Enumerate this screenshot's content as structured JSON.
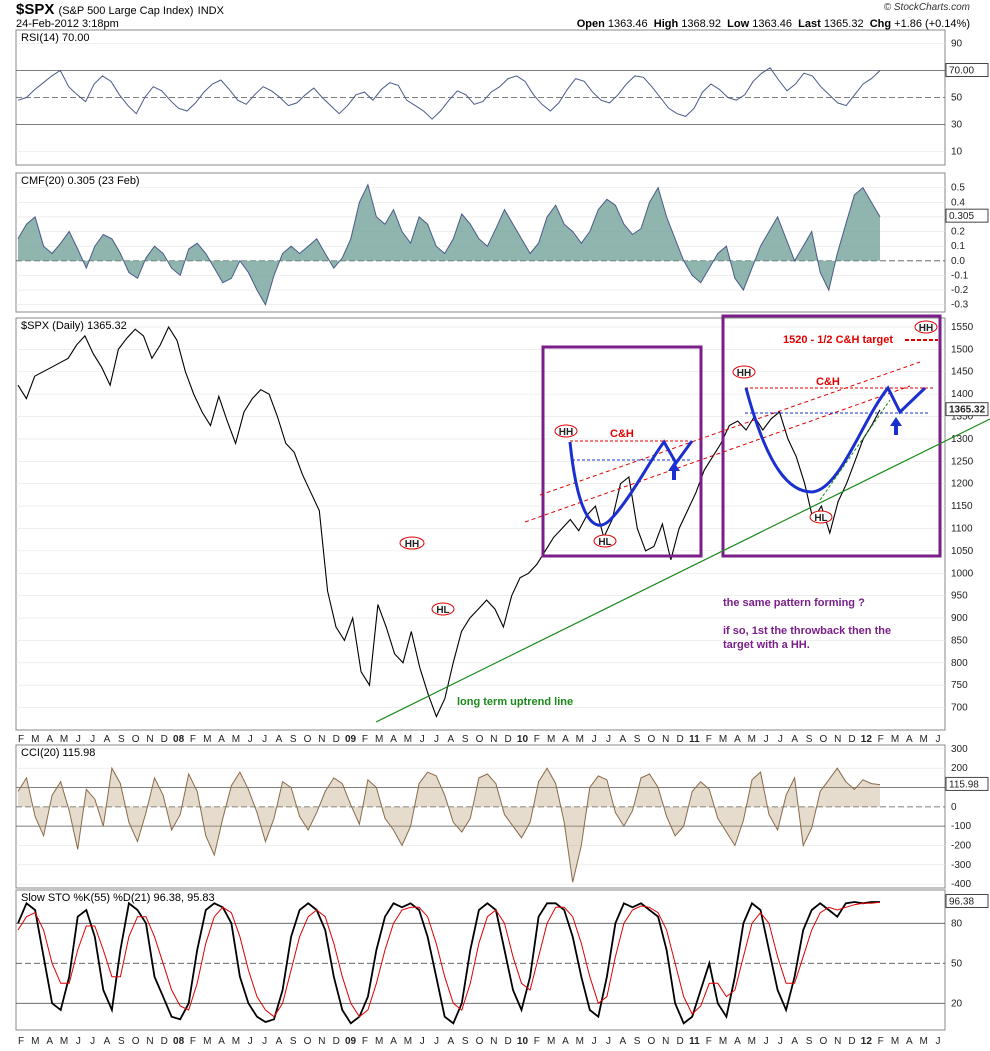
{
  "header": {
    "symbol": "$SPX",
    "name": "(S&P 500 Large Cap Index)",
    "exchange": "INDX",
    "datetime": "24-Feb-2012 3:18pm",
    "brand": "© StockCharts.com",
    "open_label": "Open",
    "open": "1363.46",
    "high_label": "High",
    "high": "1368.92",
    "low_label": "Low",
    "low": "1363.46",
    "last_label": "Last",
    "last": "1365.32",
    "chg_label": "Chg",
    "chg": "+1.86 (+0.14%)"
  },
  "colors": {
    "price": "#000000",
    "indicator": "#4a5a8a",
    "cmf_fill": "#7ba8a0",
    "cci": "#8a6a4a",
    "cci_fill": "#b89c72",
    "stoch_k": "#000000",
    "stoch_d": "#e00000",
    "annotation": "#e00000",
    "box": "#7a1f8a",
    "pattern": "#1a2fd0",
    "trend": "#1a8a1a"
  },
  "chart_data": [
    {
      "type": "line",
      "panel": "RSI",
      "title": "RSI(14) 70.00",
      "ylim": [
        0,
        100
      ],
      "yticks": [
        10,
        30,
        50,
        70,
        90
      ],
      "last_value": "70.00",
      "series": [
        {
          "name": "RSI(14)",
          "values": [
            48,
            50,
            56,
            61,
            66,
            70,
            58,
            52,
            47,
            60,
            66,
            62,
            52,
            44,
            38,
            50,
            58,
            55,
            48,
            42,
            40,
            46,
            54,
            60,
            63,
            56,
            48,
            45,
            52,
            58,
            55,
            50,
            44,
            46,
            52,
            57,
            50,
            44,
            38,
            44,
            52,
            54,
            48,
            56,
            61,
            59,
            48,
            44,
            40,
            34,
            40,
            48,
            55,
            52,
            45,
            47,
            54,
            58,
            64,
            66,
            62,
            52,
            45,
            40,
            46,
            56,
            64,
            62,
            54,
            48,
            46,
            52,
            60,
            66,
            65,
            58,
            50,
            42,
            38,
            36,
            42,
            54,
            60,
            56,
            50,
            48,
            52,
            62,
            68,
            72,
            63,
            55,
            60,
            68,
            66,
            58,
            52,
            46,
            44,
            52,
            60,
            64,
            70
          ]
        }
      ]
    },
    {
      "type": "area",
      "panel": "CMF",
      "title": "CMF(20) 0.305 (23 Feb)",
      "ylim": [
        -0.35,
        0.6
      ],
      "yticks": [
        -0.3,
        -0.2,
        -0.1,
        0.0,
        0.1,
        0.2,
        0.3,
        0.4,
        0.5
      ],
      "last_value": "0.305",
      "series": [
        {
          "name": "CMF(20)",
          "values": [
            0.15,
            0.25,
            0.3,
            0.1,
            0.05,
            0.12,
            0.2,
            0.08,
            -0.05,
            0.1,
            0.18,
            0.15,
            0.05,
            -0.08,
            -0.12,
            0.02,
            0.1,
            0.05,
            -0.05,
            -0.1,
            0.08,
            0.12,
            0.05,
            -0.05,
            -0.15,
            -0.12,
            0.0,
            -0.08,
            -0.2,
            -0.3,
            -0.1,
            0.05,
            0.1,
            0.05,
            0.1,
            0.15,
            0.05,
            -0.05,
            0.02,
            0.15,
            0.4,
            0.52,
            0.3,
            0.25,
            0.35,
            0.2,
            0.12,
            0.3,
            0.25,
            0.1,
            0.05,
            0.15,
            0.32,
            0.25,
            0.15,
            0.1,
            0.22,
            0.35,
            0.25,
            0.15,
            0.05,
            0.12,
            0.3,
            0.38,
            0.25,
            0.2,
            0.12,
            0.2,
            0.35,
            0.42,
            0.38,
            0.25,
            0.18,
            0.22,
            0.4,
            0.5,
            0.3,
            0.15,
            0.0,
            -0.1,
            -0.15,
            -0.05,
            0.05,
            0.1,
            -0.12,
            -0.2,
            -0.05,
            0.1,
            0.2,
            0.3,
            0.15,
            0.0,
            0.1,
            0.2,
            -0.08,
            -0.2,
            0.05,
            0.25,
            0.45,
            0.5,
            0.4,
            0.3
          ]
        }
      ]
    },
    {
      "type": "line",
      "panel": "Price",
      "title": "$SPX (Daily) 1365.32",
      "ylim": [
        650,
        1570
      ],
      "yticks": [
        700,
        750,
        800,
        850,
        900,
        950,
        1000,
        1050,
        1100,
        1150,
        1200,
        1250,
        1300,
        1350,
        1400,
        1450,
        1500,
        1550
      ],
      "last_value": "1365.32",
      "series": [
        {
          "name": "$SPX (Daily)",
          "values": [
            1420,
            1390,
            1440,
            1450,
            1460,
            1470,
            1480,
            1510,
            1530,
            1490,
            1460,
            1420,
            1500,
            1525,
            1545,
            1530,
            1480,
            1510,
            1550,
            1520,
            1450,
            1400,
            1360,
            1330,
            1395,
            1340,
            1290,
            1360,
            1390,
            1410,
            1400,
            1350,
            1290,
            1270,
            1220,
            1180,
            1140,
            960,
            880,
            850,
            900,
            780,
            750,
            930,
            880,
            820,
            800,
            870,
            790,
            730,
            680,
            720,
            800,
            870,
            900,
            920,
            940,
            920,
            880,
            950,
            990,
            1000,
            1020,
            1050,
            1080,
            1100,
            1120,
            1095,
            1130,
            1150,
            1080,
            1120,
            1200,
            1215,
            1100,
            1050,
            1060,
            1110,
            1030,
            1100,
            1140,
            1180,
            1230,
            1260,
            1290,
            1330,
            1340,
            1320,
            1350,
            1320,
            1345,
            1360,
            1300,
            1260,
            1200,
            1120,
            1150,
            1090,
            1160,
            1200,
            1250,
            1300,
            1330,
            1365
          ]
        }
      ],
      "month_labels": [
        "F",
        "M",
        "A",
        "M",
        "J",
        "J",
        "A",
        "S",
        "O",
        "N",
        "D",
        "08",
        "F",
        "M",
        "A",
        "M",
        "J",
        "J",
        "A",
        "S",
        "O",
        "N",
        "D",
        "09",
        "F",
        "M",
        "A",
        "M",
        "J",
        "J",
        "A",
        "S",
        "O",
        "N",
        "D",
        "10",
        "F",
        "M",
        "A",
        "M",
        "J",
        "J",
        "A",
        "S",
        "O",
        "N",
        "D",
        "11",
        "F",
        "M",
        "A",
        "M",
        "J",
        "J",
        "A",
        "S",
        "O",
        "N",
        "D",
        "12",
        "F",
        "M",
        "A",
        "M",
        "J"
      ]
    },
    {
      "type": "line",
      "panel": "CCI",
      "title": "CCI(20) 115.98",
      "ylim": [
        -420,
        320
      ],
      "yticks": [
        -400,
        -300,
        -200,
        -100,
        0,
        100,
        200,
        300
      ],
      "last_value": "115.98",
      "series": [
        {
          "name": "CCI(20)",
          "values": [
            80,
            150,
            -50,
            -150,
            60,
            130,
            -20,
            -220,
            90,
            40,
            -100,
            200,
            120,
            -80,
            -180,
            -30,
            150,
            60,
            -120,
            -40,
            170,
            80,
            -150,
            -250,
            -60,
            110,
            180,
            90,
            -30,
            -180,
            -60,
            130,
            100,
            -50,
            -120,
            -30,
            80,
            150,
            120,
            10,
            -90,
            140,
            100,
            -60,
            -120,
            -200,
            -100,
            120,
            180,
            160,
            60,
            -80,
            -130,
            -60,
            150,
            170,
            120,
            -40,
            -100,
            -160,
            -80,
            130,
            200,
            120,
            -80,
            -390,
            -200,
            100,
            160,
            140,
            -30,
            -100,
            -20,
            150,
            170,
            100,
            -50,
            -150,
            -100,
            80,
            130,
            90,
            -60,
            -130,
            -200,
            -70,
            140,
            180,
            -40,
            -120,
            60,
            150,
            -200,
            -110,
            80,
            140,
            200,
            130,
            90,
            140,
            120,
            115
          ]
        }
      ]
    },
    {
      "type": "line",
      "panel": "Slow STO",
      "title": "Slow STO %K(55) %D(21) 96.38, 95.83",
      "ylim": [
        0,
        105
      ],
      "yticks": [
        20,
        50,
        80
      ],
      "last_value": "96.38",
      "series": [
        {
          "name": "%K(55)",
          "values": [
            80,
            95,
            90,
            55,
            20,
            15,
            40,
            85,
            90,
            70,
            30,
            15,
            60,
            95,
            90,
            80,
            40,
            25,
            10,
            8,
            20,
            60,
            90,
            95,
            92,
            80,
            40,
            20,
            10,
            6,
            8,
            30,
            70,
            90,
            95,
            90,
            75,
            40,
            15,
            5,
            10,
            25,
            60,
            85,
            95,
            92,
            95,
            90,
            70,
            40,
            10,
            5,
            20,
            60,
            90,
            95,
            90,
            60,
            30,
            15,
            40,
            85,
            95,
            95,
            90,
            70,
            40,
            15,
            10,
            40,
            80,
            95,
            92,
            95,
            90,
            85,
            60,
            20,
            5,
            10,
            30,
            50,
            20,
            10,
            40,
            80,
            95,
            90,
            60,
            30,
            15,
            40,
            75,
            90,
            95,
            90,
            85,
            95,
            96,
            95,
            96,
            96
          ]
        },
        {
          "name": "%D(21)",
          "values": [
            75,
            85,
            88,
            75,
            50,
            35,
            35,
            60,
            78,
            78,
            60,
            40,
            40,
            70,
            85,
            85,
            70,
            50,
            30,
            18,
            15,
            35,
            65,
            85,
            92,
            88,
            70,
            45,
            25,
            15,
            10,
            20,
            45,
            70,
            85,
            90,
            85,
            65,
            40,
            20,
            10,
            15,
            35,
            60,
            80,
            90,
            92,
            92,
            85,
            65,
            40,
            20,
            15,
            35,
            65,
            85,
            90,
            80,
            55,
            35,
            30,
            55,
            80,
            92,
            92,
            85,
            65,
            40,
            20,
            25,
            55,
            80,
            90,
            93,
            92,
            88,
            75,
            50,
            25,
            12,
            18,
            35,
            35,
            25,
            30,
            55,
            80,
            88,
            80,
            55,
            35,
            35,
            55,
            75,
            88,
            92,
            90,
            92,
            94,
            95,
            95,
            95.8
          ]
        }
      ]
    }
  ],
  "annotations": {
    "hh1": "HH",
    "hl1": "HL",
    "hh2": "HH",
    "hl2": "HL",
    "ch2": "C&H",
    "hh3": "HH",
    "hl3": "HL",
    "ch3": "C&H",
    "hh_target": "HH",
    "target_text": "1520 - 1/2 C&H target",
    "question_line": "the same pattern forming ?",
    "throwback_line1": "if so, 1st the throwback then the",
    "throwback_line2": "target with a HH.",
    "trend_label": "long term uptrend line"
  }
}
